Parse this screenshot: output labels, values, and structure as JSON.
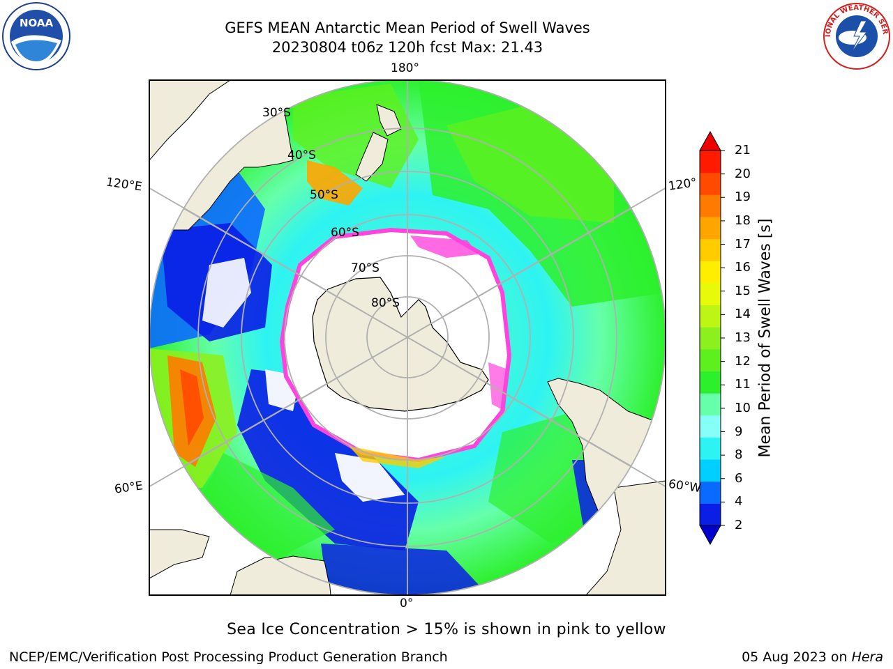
{
  "title": {
    "line1": "GEFS MEAN Antarctic Mean Period of Swell Waves",
    "line2": "20230804 t06z 120h fcst   Max: 21.43"
  },
  "map": {
    "projection": "south-polar-stereographic",
    "longitude_labels": {
      "top": "180°",
      "left_upper": "120°E",
      "right_upper": "120°",
      "left_lower": "60°E",
      "right_lower": "60°W",
      "bottom": "0°"
    },
    "latitude_labels": [
      "30°S",
      "40°S",
      "50°S",
      "60°S",
      "70°S",
      "80°S"
    ],
    "colors": {
      "land": "#efecdb",
      "grid": "#b0b0b0",
      "sea_ice": "#ffffff",
      "ice_edge": "#ff44dd"
    }
  },
  "colorbar": {
    "label": "Mean Period of Swell Waves [s]",
    "ticks": [
      "2",
      "4",
      "6",
      "8",
      "9",
      "10",
      "11",
      "12",
      "13",
      "14",
      "15",
      "16",
      "17",
      "18",
      "19",
      "20",
      "21"
    ],
    "colors": [
      "#0a1ee6",
      "#0a6aff",
      "#00cfff",
      "#2ef3f3",
      "#86fff8",
      "#66ffaa",
      "#2df02d",
      "#5ef01e",
      "#8cf01e",
      "#bdf514",
      "#e6fa0a",
      "#ffee00",
      "#ffcc00",
      "#ffa500",
      "#ff7a00",
      "#ff4a00",
      "#ff1a00"
    ],
    "under_color": "#0000cc",
    "over_color": "#ee0000"
  },
  "caption": "Sea Ice Concentration > 15% is shown in pink to yellow",
  "footer": {
    "left": "NCEP/EMC/Verification Post Processing Product Generation Branch",
    "date": "05 Aug 2023 on ",
    "machine": "Hera"
  },
  "logos": {
    "noaa": "NOAA",
    "nws": "NATIONAL WEATHER SERVICE"
  }
}
